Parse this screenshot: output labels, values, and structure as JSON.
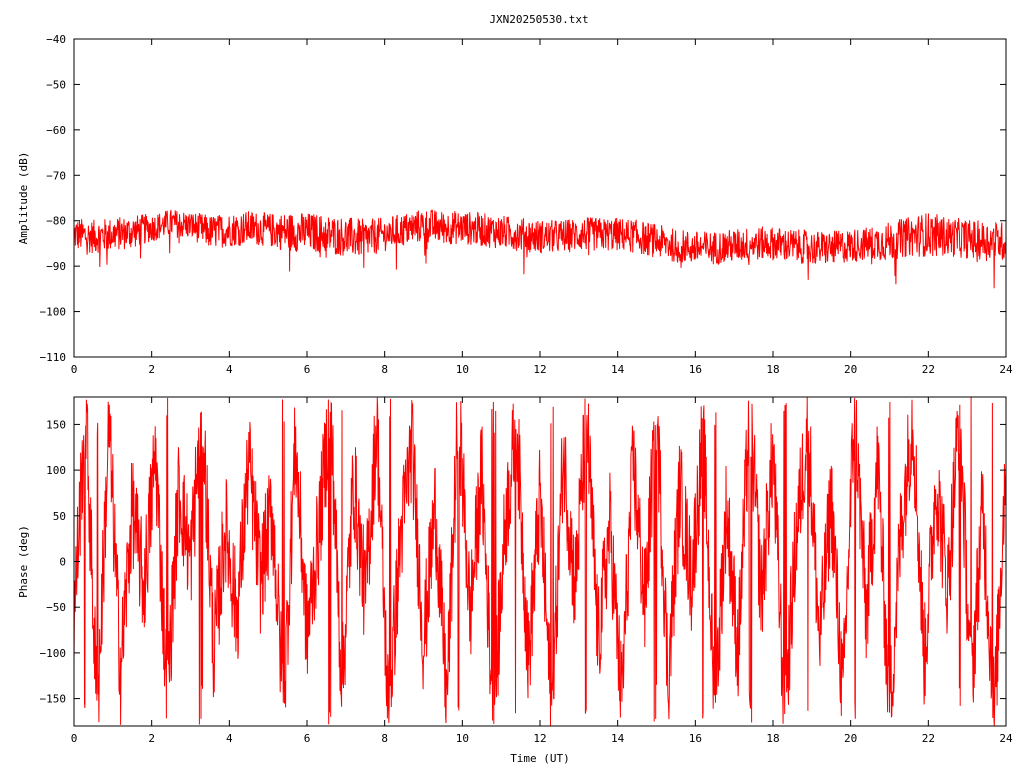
{
  "title": "JXN20250530.txt",
  "colors": {
    "series": "#ff0000",
    "axes": "#000000",
    "background": "#ffffff"
  },
  "chart_data": [
    {
      "type": "line",
      "ylabel": "Amplitude (dB)",
      "xlabel": "",
      "xlim": [
        0,
        24
      ],
      "ylim": [
        -110,
        -40
      ],
      "xticks": [
        0,
        2,
        4,
        6,
        8,
        10,
        12,
        14,
        16,
        18,
        20,
        22,
        24
      ],
      "yticks": [
        -110,
        -100,
        -90,
        -80,
        -70,
        -60,
        -50,
        -40
      ],
      "ytick_labels": [
        "−110",
        "−100",
        "−90",
        "−80",
        "−70",
        "−60",
        "−50",
        "−40"
      ],
      "grid": false,
      "series": [
        {
          "color": "#ff0000",
          "x": [
            0,
            0.5,
            1,
            1.5,
            2,
            2.5,
            3,
            3.5,
            4,
            4.5,
            5,
            5.5,
            6,
            6.5,
            7,
            7.5,
            8,
            8.5,
            9,
            9.5,
            10,
            10.5,
            11,
            11.5,
            12,
            12.5,
            13,
            13.5,
            14,
            14.5,
            15,
            15.5,
            16,
            16.5,
            17,
            17.5,
            18,
            18.5,
            19,
            19.5,
            20,
            20.5,
            21,
            21.5,
            22,
            22.5,
            23,
            23.5,
            24
          ],
          "mean": [
            -83,
            -83.5,
            -83,
            -82.5,
            -81.5,
            -80.5,
            -81,
            -82.5,
            -82,
            -81.5,
            -82,
            -82.5,
            -82.5,
            -83,
            -83.5,
            -84,
            -83,
            -82,
            -81,
            -81.5,
            -81.5,
            -82,
            -82.5,
            -83,
            -83.5,
            -83.5,
            -83,
            -83,
            -83,
            -83.5,
            -84.5,
            -85.5,
            -86,
            -86,
            -85.5,
            -85,
            -85,
            -85.5,
            -86,
            -86,
            -85.5,
            -85,
            -84.5,
            -83.5,
            -83,
            -83.5,
            -84,
            -84.5,
            -84.5
          ],
          "spread": [
            3,
            3,
            3,
            3,
            2.5,
            2.5,
            2.5,
            3,
            3,
            3,
            3,
            3.5,
            3.5,
            3.5,
            3.5,
            3.5,
            3,
            3,
            3,
            3,
            3,
            3,
            3,
            3,
            3,
            3,
            3,
            3,
            3,
            3,
            3,
            3,
            3,
            3,
            3,
            3,
            3,
            3,
            3,
            3,
            3,
            3,
            3.5,
            3.5,
            4,
            3.5,
            3.5,
            3.5,
            3.5
          ]
        }
      ]
    },
    {
      "type": "line",
      "ylabel": "Phase (deg)",
      "xlabel": "Time (UT)",
      "xlim": [
        0,
        24
      ],
      "ylim": [
        -180,
        180
      ],
      "xticks": [
        0,
        2,
        4,
        6,
        8,
        10,
        12,
        14,
        16,
        18,
        20,
        22,
        24
      ],
      "yticks": [
        -150,
        -100,
        -50,
        0,
        50,
        100,
        150
      ],
      "ytick_labels": [
        "−150",
        "−100",
        "−50",
        "0",
        "50",
        "100",
        "150"
      ],
      "grid": false,
      "series": [
        {
          "color": "#ff0000",
          "x": [
            0,
            0.3,
            0.6,
            0.9,
            1.2,
            1.5,
            1.8,
            2.1,
            2.4,
            2.7,
            3,
            3.3,
            3.6,
            3.9,
            4.2,
            4.5,
            4.8,
            5.1,
            5.4,
            5.7,
            6,
            6.3,
            6.6,
            6.9,
            7.2,
            7.5,
            7.8,
            8.1,
            8.4,
            8.7,
            9,
            9.3,
            9.6,
            9.9,
            10.2,
            10.5,
            10.8,
            11.1,
            11.4,
            11.7,
            12,
            12.3,
            12.6,
            12.9,
            13.2,
            13.5,
            13.8,
            14.1,
            14.4,
            14.7,
            15,
            15.3,
            15.6,
            15.9,
            16.2,
            16.5,
            16.8,
            17.1,
            17.4,
            17.7,
            18,
            18.3,
            18.6,
            18.9,
            19.2,
            19.5,
            19.8,
            20.1,
            20.4,
            20.7,
            21,
            21.3,
            21.6,
            21.9,
            22.2,
            22.5,
            22.8,
            23.1,
            23.4,
            23.7,
            24
          ],
          "y": [
            -60,
            170,
            -170,
            150,
            -120,
            60,
            -30,
            120,
            -150,
            80,
            0,
            170,
            -100,
            40,
            -60,
            110,
            -20,
            60,
            -160,
            130,
            -80,
            30,
            170,
            -140,
            90,
            -40,
            150,
            -170,
            20,
            130,
            -90,
            60,
            -150,
            170,
            -60,
            100,
            -180,
            40,
            150,
            -110,
            70,
            -170,
            120,
            -30,
            160,
            -90,
            40,
            -150,
            110,
            -50,
            170,
            -130,
            80,
            -20,
            140,
            -160,
            60,
            -100,
            170,
            -40,
            120,
            -170,
            30,
            150,
            -90,
            70,
            -150,
            170,
            -60,
            110,
            -170,
            40,
            160,
            -110,
            90,
            -30,
            170,
            -140,
            60,
            -170,
            120
          ]
        }
      ]
    }
  ]
}
